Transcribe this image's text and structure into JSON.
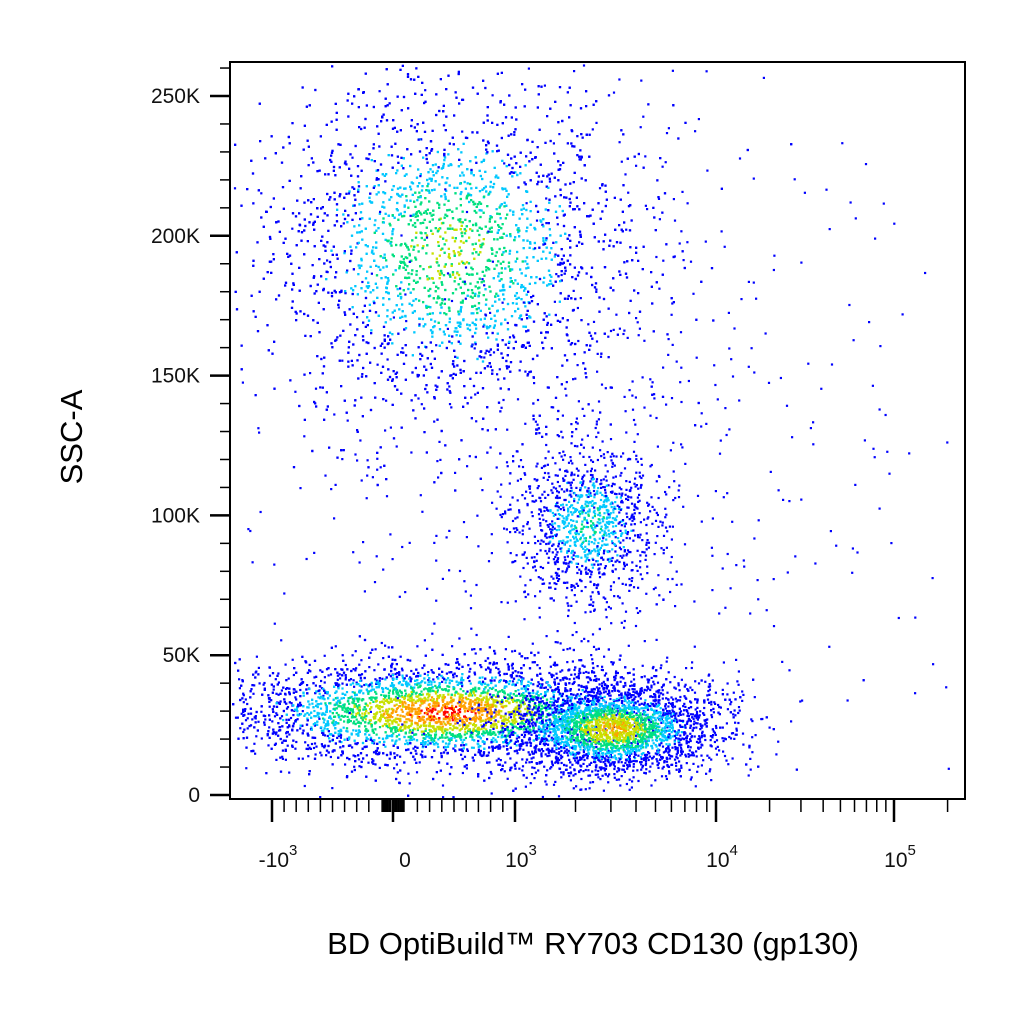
{
  "chart_data": {
    "type": "scatter",
    "style": "pseudocolor density dot plot",
    "xlabel": "BD OptiBuild™ RY703 CD130 (gp130)",
    "ylabel": "SSC-A",
    "x_scale": "biexponential",
    "y_scale": "linear",
    "ylim": [
      0,
      262144
    ],
    "y_ticks": [
      {
        "value": 0,
        "label": "0"
      },
      {
        "value": 50000,
        "label": "50K"
      },
      {
        "value": 100000,
        "label": "100K"
      },
      {
        "value": 150000,
        "label": "150K"
      },
      {
        "value": 200000,
        "label": "200K"
      },
      {
        "value": 250000,
        "label": "250K"
      }
    ],
    "x_ticks": [
      {
        "value": -1000,
        "base": "-10",
        "exp": "3"
      },
      {
        "value": 0,
        "base": "0",
        "exp": ""
      },
      {
        "value": 1000,
        "base": "10",
        "exp": "3"
      },
      {
        "value": 10000,
        "base": "10",
        "exp": "4"
      },
      {
        "value": 100000,
        "base": "10",
        "exp": "5"
      }
    ],
    "density_colors": [
      "#0000ff",
      "#00c8ff",
      "#00e080",
      "#c8e000",
      "#ffa000",
      "#ff0000"
    ],
    "populations": [
      {
        "x_center": 420,
        "y_center": 30000,
        "x_spread_decades": 0.55,
        "y_spread": 9000,
        "count": 5200,
        "peak_color_index": 5
      },
      {
        "x_center": 3000,
        "y_center": 24000,
        "x_spread_decades": 0.25,
        "y_spread": 8000,
        "count": 2600,
        "peak_color_index": 4
      },
      {
        "x_center": 450,
        "y_center": 195000,
        "x_spread_decades": 0.45,
        "y_spread": 30000,
        "count": 4300,
        "peak_color_index": 3
      },
      {
        "x_center": 2300,
        "y_center": 97000,
        "x_spread_decades": 0.18,
        "y_spread": 14000,
        "count": 1100,
        "peak_color_index": 2
      },
      {
        "x_center": 2000,
        "y_center": 120000,
        "x_spread_decades": 0.8,
        "y_spread": 70000,
        "count": 700,
        "peak_color_index": 0
      }
    ],
    "grid": false,
    "legend": "none"
  }
}
